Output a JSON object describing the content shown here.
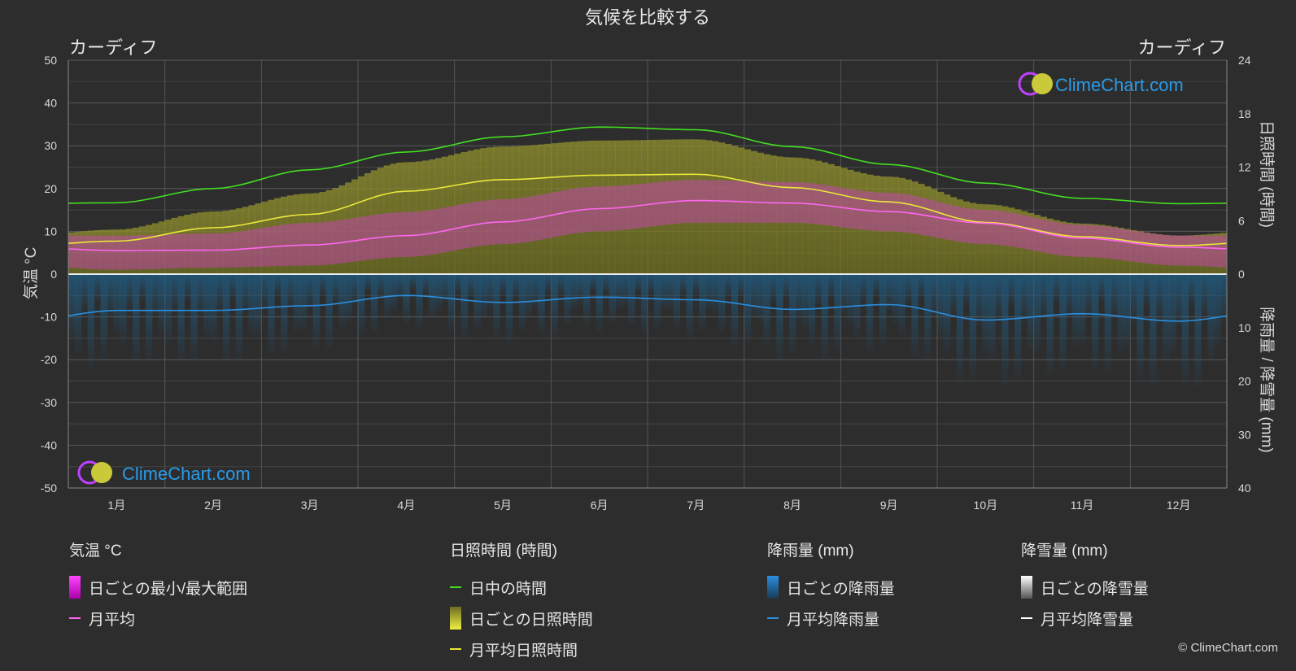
{
  "chart_data": {
    "type": "area",
    "title": "気候を比較する",
    "location_left": "カーディフ",
    "location_right": "カーディフ",
    "watermark": "ClimeChart.com",
    "copyright": "© ClimeChart.com",
    "categories": [
      "1月",
      "2月",
      "3月",
      "4月",
      "5月",
      "6月",
      "7月",
      "8月",
      "9月",
      "10月",
      "11月",
      "12月"
    ],
    "y_left": {
      "label": "気温 °C",
      "min": -50,
      "max": 50,
      "ticks": [
        50,
        40,
        30,
        20,
        10,
        0,
        -10,
        -20,
        -30,
        -40,
        -50
      ]
    },
    "y_right_top": {
      "label": "日照時間 (時間)",
      "min": 0,
      "max": 24,
      "ticks": [
        24,
        18,
        12,
        6,
        0
      ]
    },
    "y_right_bottom": {
      "label": "降雨量 / 降雪量 (mm)",
      "min": 0,
      "max": 40,
      "ticks": [
        0,
        10,
        20,
        30,
        40
      ]
    },
    "grid": true,
    "series": [
      {
        "name": "日中の時間",
        "unit": "hours",
        "color": "#44dd22",
        "values": [
          8.0,
          9.6,
          11.7,
          13.7,
          15.4,
          16.5,
          16.2,
          14.3,
          12.3,
          10.2,
          8.5,
          7.9
        ]
      },
      {
        "name": "月平均日照時間",
        "unit": "hours",
        "color": "#e8e83a",
        "values": [
          3.7,
          5.2,
          6.7,
          9.3,
          10.6,
          11.1,
          11.2,
          9.7,
          8.1,
          5.8,
          4.2,
          3.2
        ]
      },
      {
        "name": "月平均",
        "unit": "°C",
        "color": "#ff66ee",
        "values": [
          5.5,
          5.6,
          6.8,
          9.0,
          12.2,
          15.3,
          17.2,
          16.6,
          14.6,
          11.9,
          8.4,
          6.3
        ]
      },
      {
        "name": "月平均降雨量",
        "unit": "mm",
        "color": "#2a8fe0",
        "values": [
          6.8,
          6.8,
          5.9,
          4.0,
          5.3,
          4.3,
          4.8,
          6.6,
          5.7,
          8.6,
          7.4,
          8.8
        ]
      },
      {
        "name": "月平均降雪量",
        "unit": "mm",
        "color": "#ffffff",
        "values": [
          0,
          0,
          0,
          0,
          0,
          0,
          0,
          0,
          0,
          0,
          0,
          0
        ]
      }
    ],
    "daily_temp_range": {
      "min": [
        1,
        1.5,
        2,
        4,
        7,
        10,
        12,
        12,
        10,
        7,
        4,
        2
      ],
      "max": [
        9,
        9.5,
        12,
        14.5,
        17.5,
        20.5,
        22,
        21.5,
        19,
        15,
        11.5,
        9
      ]
    }
  },
  "legend": {
    "temp": {
      "header": "気温 °C",
      "range": "日ごとの最小/最大範囲",
      "avg": "月平均"
    },
    "sun": {
      "header": "日照時間 (時間)",
      "daylight": "日中の時間",
      "daily": "日ごとの日照時間",
      "avg": "月平均日照時間"
    },
    "rain": {
      "header": "降雨量 (mm)",
      "daily": "日ごとの降雨量",
      "avg": "月平均降雨量"
    },
    "snow": {
      "header": "降雪量 (mm)",
      "daily": "日ごとの降雪量",
      "avg": "月平均降雪量"
    }
  }
}
